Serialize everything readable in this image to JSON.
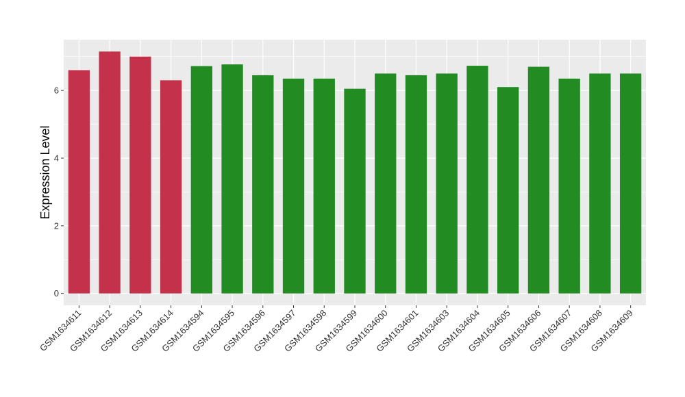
{
  "chart_data": {
    "type": "bar",
    "title": "",
    "xlabel": "",
    "ylabel": "Expression Level",
    "ylim": [
      -0.35,
      7.5
    ],
    "yticks": [
      0,
      2,
      4,
      6
    ],
    "yticklabels": [
      "0",
      "2",
      "4",
      "6"
    ],
    "grid": true,
    "legend": "none",
    "categories": [
      "GSM1634611",
      "GSM1634612",
      "GSM1634613",
      "GSM1634614",
      "GSM1634594",
      "GSM1634595",
      "GSM1634596",
      "GSM1634597",
      "GSM1634598",
      "GSM1634599",
      "GSM1634600",
      "GSM1634601",
      "GSM1634603",
      "GSM1634604",
      "GSM1634605",
      "GSM1634606",
      "GSM1634607",
      "GSM1634608",
      "GSM1634609"
    ],
    "values": [
      6.6,
      7.15,
      7.0,
      6.3,
      6.72,
      6.77,
      6.45,
      6.35,
      6.35,
      6.05,
      6.5,
      6.45,
      6.5,
      6.73,
      6.1,
      6.7,
      6.35,
      6.5,
      6.5
    ],
    "bar_colors": [
      "#c3314a",
      "#c3314a",
      "#c3314a",
      "#c3314a",
      "#228b22",
      "#228b22",
      "#228b22",
      "#228b22",
      "#228b22",
      "#228b22",
      "#228b22",
      "#228b22",
      "#228b22",
      "#228b22",
      "#228b22",
      "#228b22",
      "#228b22",
      "#228b22",
      "#228b22"
    ],
    "panel_background": "#ebebeb",
    "gridline_color": "#ffffff"
  }
}
